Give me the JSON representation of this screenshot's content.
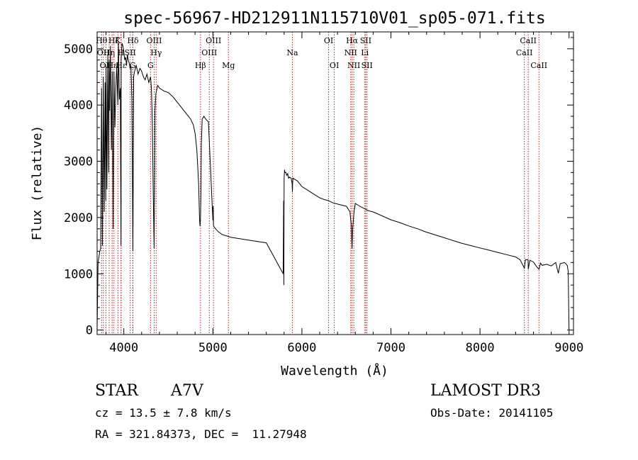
{
  "chart_data": {
    "type": "line",
    "title": "spec-56967-HD212911N115710V01_sp05-071.fits",
    "xlabel": "Wavelength (Å)",
    "ylabel": "Flux (relative)",
    "xlim": [
      3700,
      9050
    ],
    "ylim": [
      -80,
      5300
    ],
    "xticks": [
      4000,
      5000,
      6000,
      7000,
      8000,
      9000
    ],
    "yticks": [
      0,
      1000,
      2000,
      3000,
      4000,
      5000
    ],
    "series": [
      {
        "name": "flux",
        "x": [
          3700,
          3710,
          3730,
          3740,
          3750,
          3760,
          3770,
          3780,
          3790,
          3797,
          3800,
          3810,
          3820,
          3830,
          3835,
          3840,
          3850,
          3860,
          3870,
          3880,
          3889,
          3900,
          3910,
          3920,
          3933,
          3940,
          3950,
          3960,
          3968,
          3970,
          3975,
          3980,
          3990,
          4000,
          4010,
          4020,
          4030,
          4040,
          4050,
          4060,
          4070,
          4080,
          4090,
          4102,
          4110,
          4120,
          4140,
          4160,
          4180,
          4200,
          4220,
          4240,
          4260,
          4280,
          4300,
          4310,
          4320,
          4330,
          4340,
          4345,
          4350,
          4360,
          4380,
          4400,
          4450,
          4500,
          4550,
          4600,
          4650,
          4700,
          4750,
          4780,
          4800,
          4820,
          4840,
          4850,
          4855,
          4861,
          4866,
          4870,
          4880,
          4900,
          4920,
          4950,
          5000,
          5003,
          5007,
          5030,
          5060,
          5100,
          5200,
          5400,
          5600,
          5790,
          5795,
          5797,
          5800,
          5805,
          5810,
          5820,
          5830,
          5840,
          5850,
          5860,
          5880,
          5890,
          5893,
          5896,
          5900,
          5920,
          5950,
          6000,
          6050,
          6100,
          6150,
          6200,
          6250,
          6300,
          6350,
          6400,
          6450,
          6500,
          6540,
          6555,
          6563,
          6570,
          6585,
          6600,
          6650,
          6700,
          6750,
          6800,
          6900,
          7000,
          7100,
          7200,
          7300,
          7400,
          7500,
          7600,
          7700,
          7800,
          7900,
          8000,
          8100,
          8200,
          8300,
          8400,
          8450,
          8498,
          8510,
          8540,
          8542,
          8560,
          8600,
          8640,
          8662,
          8680,
          8700,
          8750,
          8800,
          8850,
          8880,
          8900,
          8950,
          8980,
          8990,
          9000
        ],
        "y": [
          0,
          1200,
          1400,
          1450,
          4300,
          1500,
          4500,
          2100,
          4400,
          2300,
          4700,
          2500,
          4900,
          2800,
          4800,
          3900,
          5050,
          3200,
          4600,
          1800,
          4600,
          3600,
          4300,
          4700,
          4000,
          5100,
          4100,
          4300,
          1500,
          4800,
          5000,
          5100,
          5050,
          4950,
          4800,
          4850,
          4700,
          4900,
          4800,
          4750,
          4650,
          4700,
          4100,
          1400,
          4500,
          4600,
          4700,
          4550,
          4650,
          4600,
          4500,
          4450,
          4550,
          4400,
          4500,
          4300,
          3700,
          2500,
          1450,
          2500,
          3900,
          4200,
          4350,
          4300,
          4250,
          4220,
          4150,
          4050,
          3950,
          3850,
          3750,
          3650,
          3500,
          3200,
          2600,
          2000,
          1850,
          1950,
          2500,
          3300,
          3750,
          3800,
          3750,
          3700,
          1950,
          2200,
          1850,
          1800,
          1750,
          1700,
          1650,
          1600,
          1550,
          1000,
          2300,
          800,
          2700,
          2850,
          2800,
          2800,
          2750,
          2780,
          2700,
          2720,
          2700,
          2600,
          2450,
          2600,
          2700,
          2680,
          2650,
          2550,
          2500,
          2450,
          2400,
          2350,
          2320,
          2300,
          2260,
          2240,
          2220,
          2200,
          2100,
          1850,
          1450,
          1800,
          2100,
          2250,
          2200,
          2160,
          2120,
          2100,
          2030,
          1960,
          1910,
          1850,
          1800,
          1740,
          1690,
          1640,
          1590,
          1540,
          1500,
          1460,
          1420,
          1380,
          1340,
          1300,
          1250,
          1100,
          1250,
          1250,
          1080,
          1240,
          1210,
          1120,
          1080,
          1190,
          1150,
          1170,
          1140,
          1200,
          1010,
          1180,
          1200,
          1150,
          1050,
          0
        ]
      }
    ],
    "line_markers": [
      {
        "w": 3750,
        "row": 0,
        "label": "Hθ"
      },
      {
        "w": 3770,
        "row": 1,
        "label": "OII"
      },
      {
        "w": 3798,
        "row": 2,
        "label": "OII"
      },
      {
        "w": 3835,
        "row": 1,
        "label": "Hη"
      },
      {
        "w": 3889,
        "row": 0,
        "label": "Hζ"
      },
      {
        "w": 3869,
        "row": 2,
        "label": "Hε"
      },
      {
        "w": 3934,
        "row": 0,
        "label": "K"
      },
      {
        "w": 3968,
        "row": 1,
        "label": "H"
      },
      {
        "w": 3970,
        "row": 2,
        "label": "Hε"
      },
      {
        "w": 4072,
        "row": 1,
        "label": "SII"
      },
      {
        "w": 4102,
        "row": 0,
        "label": "Hδ"
      },
      {
        "w": 4100,
        "row": 2,
        "label": "G"
      },
      {
        "w": 4300,
        "row": 2,
        "label": "G"
      },
      {
        "w": 4341,
        "row": 0,
        "label": "OIII"
      },
      {
        "w": 4363,
        "row": 1,
        "label": "Hγ"
      },
      {
        "w": 4861,
        "row": 2,
        "label": "Hβ"
      },
      {
        "w": 4960,
        "row": 1,
        "label": "OIII"
      },
      {
        "w": 5007,
        "row": 0,
        "label": "OIII"
      },
      {
        "w": 5175,
        "row": 2,
        "label": "Mg"
      },
      {
        "w": 5893,
        "row": 1,
        "label": "Na"
      },
      {
        "w": 6300,
        "row": 0,
        "label": "OI"
      },
      {
        "w": 6364,
        "row": 2,
        "label": "OI"
      },
      {
        "w": 6548,
        "row": 1,
        "label": "NII"
      },
      {
        "w": 6563,
        "row": 0,
        "label": "Hα"
      },
      {
        "w": 6583,
        "row": 2,
        "label": "NII"
      },
      {
        "w": 6707,
        "row": 1,
        "label": "Li"
      },
      {
        "w": 6716,
        "row": 0,
        "label": "SII"
      },
      {
        "w": 6731,
        "row": 2,
        "label": "SII"
      },
      {
        "w": 8498,
        "row": 1,
        "label": "CaII"
      },
      {
        "w": 8542,
        "row": 0,
        "label": "CaII"
      },
      {
        "w": 8662,
        "row": 2,
        "label": "CaII"
      }
    ]
  },
  "info": {
    "class_label": "STAR",
    "subclass": "A7V",
    "survey": "LAMOST DR3",
    "cz": "cz = 13.5 ± 7.8 km/s",
    "obs_date": "Obs-Date: 20141105",
    "coords": "RA = 321.84373, DEC =  11.27948"
  },
  "colors": {
    "spectrum": "#000000",
    "marker_line": "#b22222",
    "axis": "#000000"
  }
}
